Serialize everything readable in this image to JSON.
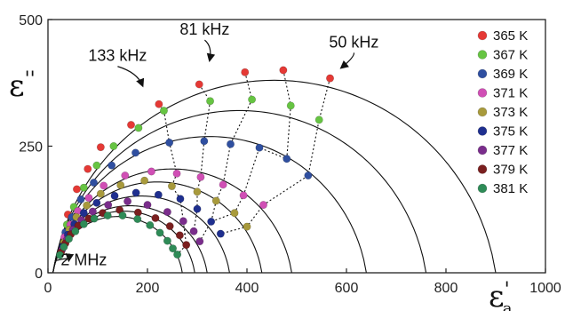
{
  "chart_data": {
    "type": "scatter",
    "title": "",
    "xlabel": {
      "main": "ε",
      "prime": "'",
      "sub": "a"
    },
    "ylabel": {
      "main": "ε",
      "prime": "''"
    },
    "xlim": [
      0,
      1000
    ],
    "ylim": [
      0,
      500
    ],
    "xticks": [
      0,
      200,
      400,
      600,
      800,
      1000
    ],
    "yticks": [
      0,
      250,
      500
    ],
    "grid": false,
    "legend_position": "right",
    "series": [
      {
        "name": "365 K",
        "color": "#e53935",
        "eps_inf": 10,
        "eps_s": 900,
        "alpha": 0.1,
        "points": [
          [
            40,
            115
          ],
          [
            58,
            165
          ],
          [
            80,
            205
          ],
          [
            106,
            248
          ],
          [
            167,
            292
          ],
          [
            223,
            333
          ],
          [
            304,
            372
          ],
          [
            396,
            396
          ],
          [
            473,
            400
          ],
          [
            567,
            384
          ]
        ]
      },
      {
        "name": "367 K",
        "color": "#66c442",
        "eps_inf": 10,
        "eps_s": 760,
        "alpha": 0.1,
        "points": [
          [
            38,
            95
          ],
          [
            52,
            130
          ],
          [
            72,
            168
          ],
          [
            98,
            212
          ],
          [
            132,
            250
          ],
          [
            182,
            286
          ],
          [
            233,
            320
          ],
          [
            326,
            339
          ],
          [
            410,
            342
          ],
          [
            488,
            330
          ],
          [
            545,
            302
          ]
        ]
      },
      {
        "name": "369 K",
        "color": "#2f4fa0",
        "eps_inf": 10,
        "eps_s": 640,
        "alpha": 0.1,
        "points": [
          [
            35,
            80
          ],
          [
            48,
            110
          ],
          [
            66,
            145
          ],
          [
            92,
            178
          ],
          [
            128,
            212
          ],
          [
            176,
            237
          ],
          [
            244,
            257
          ],
          [
            314,
            260
          ],
          [
            367,
            254
          ],
          [
            425,
            247
          ],
          [
            480,
            225
          ],
          [
            523,
            192
          ]
        ]
      },
      {
        "name": "371 K",
        "color": "#d04fb5",
        "eps_inf": 10,
        "eps_s": 490,
        "alpha": 0.1,
        "points": [
          [
            33,
            70
          ],
          [
            45,
            95
          ],
          [
            60,
            122
          ],
          [
            82,
            148
          ],
          [
            112,
            172
          ],
          [
            155,
            192
          ],
          [
            208,
            200
          ],
          [
            259,
            196
          ],
          [
            307,
            189
          ],
          [
            352,
            174
          ],
          [
            393,
            153
          ],
          [
            433,
            134
          ]
        ]
      },
      {
        "name": "373 K",
        "color": "#a89a3c",
        "eps_inf": 10,
        "eps_s": 430,
        "alpha": 0.1,
        "points": [
          [
            32,
            60
          ],
          [
            43,
            85
          ],
          [
            57,
            110
          ],
          [
            78,
            133
          ],
          [
            106,
            156
          ],
          [
            146,
            173
          ],
          [
            194,
            182
          ],
          [
            249,
            171
          ],
          [
            300,
            160
          ],
          [
            338,
            142
          ],
          [
            375,
            118
          ],
          [
            400,
            91
          ]
        ]
      },
      {
        "name": "375 K",
        "color": "#1f2f8f",
        "eps_inf": 10,
        "eps_s": 365,
        "alpha": 0.1,
        "points": [
          [
            30,
            52
          ],
          [
            40,
            75
          ],
          [
            53,
            96
          ],
          [
            72,
            118
          ],
          [
            98,
            138
          ],
          [
            134,
            152
          ],
          [
            177,
            158
          ],
          [
            222,
            154
          ],
          [
            266,
            146
          ],
          [
            300,
            126
          ],
          [
            328,
            101
          ],
          [
            347,
            77
          ]
        ]
      },
      {
        "name": "377 K",
        "color": "#7a2d8c",
        "eps_inf": 10,
        "eps_s": 320,
        "alpha": 0.1,
        "points": [
          [
            28,
            45
          ],
          [
            38,
            65
          ],
          [
            50,
            85
          ],
          [
            67,
            104
          ],
          [
            90,
            121
          ],
          [
            121,
            134
          ],
          [
            160,
            141
          ],
          [
            200,
            134
          ],
          [
            240,
            120
          ],
          [
            272,
            102
          ],
          [
            293,
            82
          ],
          [
            305,
            62
          ]
        ]
      },
      {
        "name": "379 K",
        "color": "#7a1f1f",
        "eps_inf": 10,
        "eps_s": 295,
        "alpha": 0.1,
        "points": [
          [
            26,
            40
          ],
          [
            35,
            58
          ],
          [
            46,
            76
          ],
          [
            61,
            93
          ],
          [
            82,
            107
          ],
          [
            110,
            118
          ],
          [
            144,
            124
          ],
          [
            181,
            119
          ],
          [
            216,
            108
          ],
          [
            245,
            92
          ],
          [
            265,
            74
          ],
          [
            278,
            55
          ]
        ]
      },
      {
        "name": "381 K",
        "color": "#2e8b57",
        "eps_inf": 10,
        "eps_s": 270,
        "alpha": 0.1,
        "points": [
          [
            24,
            35
          ],
          [
            32,
            51
          ],
          [
            42,
            67
          ],
          [
            55,
            82
          ],
          [
            72,
            96
          ],
          [
            93,
            107
          ],
          [
            120,
            113
          ],
          [
            150,
            113
          ],
          [
            180,
            106
          ],
          [
            205,
            94
          ],
          [
            225,
            79
          ],
          [
            240,
            63
          ],
          [
            251,
            48
          ],
          [
            260,
            36
          ]
        ]
      }
    ],
    "iso_frequency_curves": [
      {
        "label": "133 kHz",
        "points": [
          [
            223,
            333
          ],
          [
            233,
            320
          ],
          [
            244,
            257
          ],
          [
            259,
            196
          ],
          [
            249,
            171
          ],
          [
            266,
            146
          ],
          [
            272,
            102
          ],
          [
            278,
            55
          ],
          [
            260,
            36
          ]
        ]
      },
      {
        "label": "81 kHz",
        "points": [
          [
            396,
            396
          ],
          [
            410,
            342
          ],
          [
            367,
            254
          ],
          [
            352,
            174
          ],
          [
            338,
            142
          ],
          [
            328,
            101
          ],
          [
            305,
            62
          ]
        ]
      },
      {
        "label": "50 kHz",
        "points": [
          [
            567,
            384
          ],
          [
            545,
            302
          ],
          [
            523,
            192
          ],
          [
            433,
            134
          ],
          [
            400,
            91
          ],
          [
            347,
            77
          ]
        ]
      },
      {
        "label": "",
        "points": [
          [
            304,
            372
          ],
          [
            326,
            339
          ],
          [
            314,
            260
          ],
          [
            307,
            189
          ],
          [
            300,
            160
          ],
          [
            300,
            126
          ],
          [
            293,
            82
          ],
          [
            265,
            74
          ]
        ]
      },
      {
        "label": "",
        "points": [
          [
            473,
            400
          ],
          [
            488,
            330
          ],
          [
            480,
            225
          ],
          [
            425,
            247
          ],
          [
            393,
            153
          ],
          [
            375,
            118
          ],
          [
            328,
            101
          ]
        ]
      }
    ],
    "annotations": [
      {
        "text": "133 kHz",
        "anchor": [
          140,
          418
        ],
        "arrow_to": [
          190,
          370
        ]
      },
      {
        "text": "81 kHz",
        "anchor": [
          315,
          470
        ],
        "arrow_to": [
          325,
          420
        ]
      },
      {
        "text": "50 kHz",
        "anchor": [
          615,
          445
        ],
        "arrow_to": [
          590,
          405
        ]
      },
      {
        "text": "2 MHz",
        "anchor": [
          65,
          15
        ],
        "arrow_to": [
          42,
          25
        ]
      }
    ]
  }
}
